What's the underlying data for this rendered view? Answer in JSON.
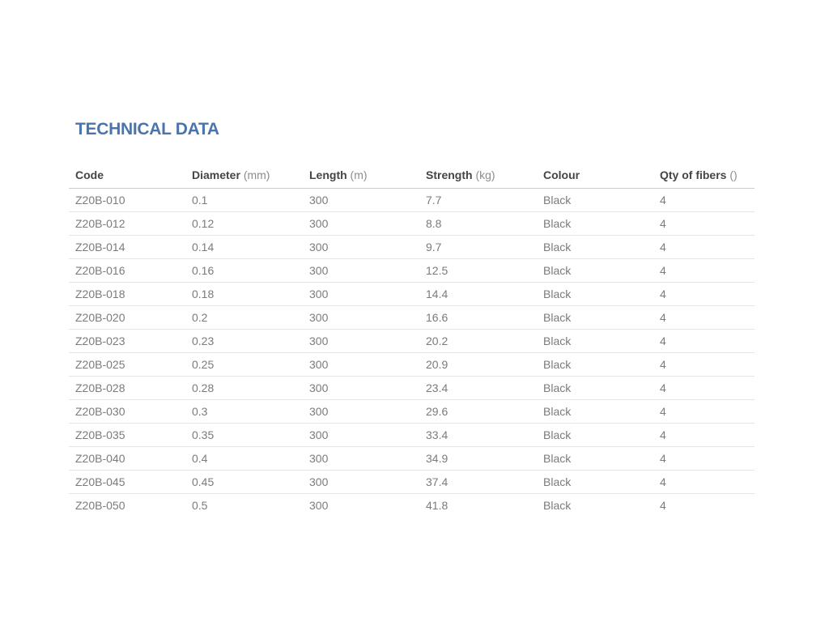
{
  "page": {
    "background": "#ffffff",
    "accent_color": "#4a74ab"
  },
  "section": {
    "title": "TECHNICAL DATA"
  },
  "table": {
    "columns": [
      {
        "label": "Code",
        "unit": ""
      },
      {
        "label": "Diameter",
        "unit": "(mm)"
      },
      {
        "label": "Length",
        "unit": "(m)"
      },
      {
        "label": "Strength",
        "unit": "(kg)"
      },
      {
        "label": "Colour",
        "unit": ""
      },
      {
        "label": "Qty of fibers",
        "unit": "()"
      }
    ],
    "rows": [
      [
        "Z20B-010",
        "0.1",
        "300",
        "7.7",
        "Black",
        "4"
      ],
      [
        "Z20B-012",
        "0.12",
        "300",
        "8.8",
        "Black",
        "4"
      ],
      [
        "Z20B-014",
        "0.14",
        "300",
        "9.7",
        "Black",
        "4"
      ],
      [
        "Z20B-016",
        "0.16",
        "300",
        "12.5",
        "Black",
        "4"
      ],
      [
        "Z20B-018",
        "0.18",
        "300",
        "14.4",
        "Black",
        "4"
      ],
      [
        "Z20B-020",
        "0.2",
        "300",
        "16.6",
        "Black",
        "4"
      ],
      [
        "Z20B-023",
        "0.23",
        "300",
        "20.2",
        "Black",
        "4"
      ],
      [
        "Z20B-025",
        "0.25",
        "300",
        "20.9",
        "Black",
        "4"
      ],
      [
        "Z20B-028",
        "0.28",
        "300",
        "23.4",
        "Black",
        "4"
      ],
      [
        "Z20B-030",
        "0.3",
        "300",
        "29.6",
        "Black",
        "4"
      ],
      [
        "Z20B-035",
        "0.35",
        "300",
        "33.4",
        "Black",
        "4"
      ],
      [
        "Z20B-040",
        "0.4",
        "300",
        "34.9",
        "Black",
        "4"
      ],
      [
        "Z20B-045",
        "0.45",
        "300",
        "37.4",
        "Black",
        "4"
      ],
      [
        "Z20B-050",
        "0.5",
        "300",
        "41.8",
        "Black",
        "4"
      ]
    ]
  }
}
